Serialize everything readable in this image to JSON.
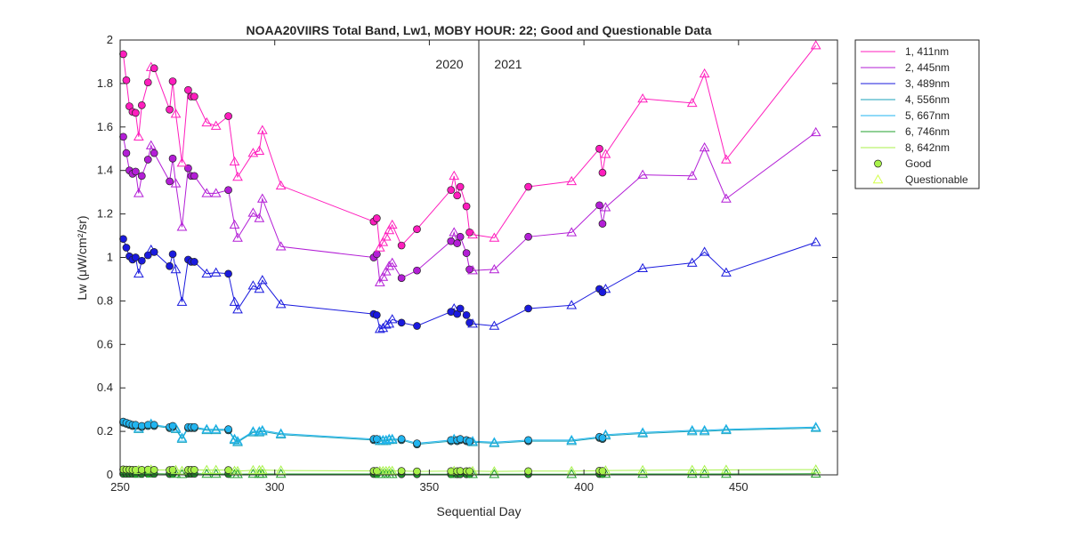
{
  "chart_data": {
    "type": "line",
    "title": "NOAA20VIIRS Total Band,  Lw1, MOBY HOUR: 22;  Good and Questionable Data",
    "xlabel": "Sequential Day",
    "ylabel": "Lw (μW/cm²/sr)",
    "xlim": [
      250,
      482
    ],
    "ylim": [
      0,
      2
    ],
    "xticks": [
      250,
      300,
      350,
      400,
      450
    ],
    "yticks": [
      0,
      0.2,
      0.4,
      0.6,
      0.8,
      1,
      1.2,
      1.4,
      1.6,
      1.8,
      2
    ],
    "grid": false,
    "legend_position": "outside-right",
    "year_divider": {
      "x": 366,
      "left_label": "2020",
      "right_label": "2021"
    },
    "x": [
      251,
      252,
      253,
      254,
      255,
      256,
      257,
      259,
      260,
      261,
      266,
      267,
      268,
      270,
      272,
      273,
      274,
      278,
      281,
      285,
      287,
      288,
      293,
      295,
      296,
      302,
      332,
      333,
      334,
      335,
      336,
      337,
      338,
      341,
      346,
      357,
      358,
      359,
      360,
      362,
      363,
      364,
      371,
      382,
      396,
      405,
      406,
      407,
      419,
      435,
      439,
      446,
      475
    ],
    "flags": [
      "G",
      "G",
      "G",
      "G",
      "G",
      "Q",
      "G",
      "G",
      "Q",
      "G",
      "G",
      "G",
      "Q",
      "Q",
      "G",
      "G",
      "G",
      "Q",
      "Q",
      "G",
      "Q",
      "Q",
      "Q",
      "Q",
      "Q",
      "Q",
      "G",
      "G",
      "Q",
      "Q",
      "Q",
      "Q",
      "Q",
      "G",
      "G",
      "G",
      "Q",
      "G",
      "G",
      "G",
      "G",
      "Q",
      "Q",
      "G",
      "Q",
      "G",
      "G",
      "Q",
      "Q",
      "Q",
      "Q",
      "Q",
      "Q"
    ],
    "series": [
      {
        "name": "1, 411nm",
        "color": "#ff1dbd",
        "values": [
          1.935,
          1.815,
          1.695,
          1.67,
          1.665,
          1.555,
          1.7,
          1.805,
          1.875,
          1.87,
          1.68,
          1.81,
          1.66,
          1.435,
          1.77,
          1.74,
          1.74,
          1.62,
          1.605,
          1.65,
          1.44,
          1.37,
          1.48,
          1.49,
          1.585,
          1.33,
          1.165,
          1.18,
          1.045,
          1.07,
          1.095,
          1.125,
          1.15,
          1.055,
          1.13,
          1.31,
          1.375,
          1.285,
          1.325,
          1.235,
          1.115,
          1.105,
          1.09,
          1.325,
          1.35,
          1.5,
          1.39,
          1.475,
          1.73,
          1.71,
          1.845,
          1.45,
          1.975
        ]
      },
      {
        "name": "2, 445nm",
        "color": "#b31ed6",
        "values": [
          1.555,
          1.48,
          1.4,
          1.385,
          1.395,
          1.295,
          1.375,
          1.45,
          1.515,
          1.48,
          1.35,
          1.455,
          1.34,
          1.14,
          1.41,
          1.375,
          1.375,
          1.295,
          1.295,
          1.31,
          1.15,
          1.09,
          1.205,
          1.18,
          1.27,
          1.05,
          1.0,
          1.015,
          0.885,
          0.91,
          0.935,
          0.96,
          0.975,
          0.905,
          0.94,
          1.075,
          1.115,
          1.065,
          1.095,
          1.02,
          0.945,
          0.94,
          0.945,
          1.095,
          1.115,
          1.24,
          1.155,
          1.23,
          1.38,
          1.375,
          1.505,
          1.27,
          1.575
        ]
      },
      {
        "name": "3, 489nm",
        "color": "#1a1ade",
        "values": [
          1.085,
          1.045,
          1.005,
          0.99,
          1.0,
          0.925,
          0.985,
          1.01,
          1.035,
          1.025,
          0.96,
          1.015,
          0.945,
          0.795,
          0.99,
          0.98,
          0.98,
          0.925,
          0.93,
          0.925,
          0.795,
          0.76,
          0.87,
          0.855,
          0.895,
          0.785,
          0.74,
          0.735,
          0.67,
          0.675,
          0.69,
          0.695,
          0.715,
          0.7,
          0.685,
          0.75,
          0.765,
          0.74,
          0.765,
          0.735,
          0.7,
          0.695,
          0.685,
          0.765,
          0.78,
          0.855,
          0.84,
          0.855,
          0.95,
          0.975,
          1.025,
          0.93,
          1.07
        ]
      },
      {
        "name": "4, 556nm",
        "color": "#18a2b8",
        "values": [
          0.24,
          0.235,
          0.23,
          0.225,
          0.225,
          0.21,
          0.22,
          0.225,
          0.23,
          0.225,
          0.215,
          0.22,
          0.21,
          0.165,
          0.215,
          0.215,
          0.215,
          0.205,
          0.205,
          0.205,
          0.16,
          0.15,
          0.195,
          0.195,
          0.2,
          0.185,
          0.16,
          0.16,
          0.155,
          0.155,
          0.155,
          0.16,
          0.16,
          0.16,
          0.14,
          0.155,
          0.16,
          0.155,
          0.16,
          0.155,
          0.15,
          0.15,
          0.145,
          0.155,
          0.155,
          0.17,
          0.165,
          0.18,
          0.19,
          0.2,
          0.2,
          0.205,
          0.215
        ]
      },
      {
        "name": "5, 667nm",
        "color": "#21b5f0",
        "values": [
          0.245,
          0.24,
          0.235,
          0.23,
          0.23,
          0.215,
          0.225,
          0.23,
          0.235,
          0.23,
          0.22,
          0.225,
          0.215,
          0.17,
          0.22,
          0.22,
          0.22,
          0.21,
          0.21,
          0.21,
          0.165,
          0.155,
          0.2,
          0.2,
          0.205,
          0.19,
          0.165,
          0.165,
          0.16,
          0.16,
          0.16,
          0.165,
          0.165,
          0.165,
          0.145,
          0.16,
          0.165,
          0.16,
          0.165,
          0.16,
          0.155,
          0.155,
          0.15,
          0.16,
          0.16,
          0.175,
          0.17,
          0.185,
          0.195,
          0.205,
          0.205,
          0.21,
          0.22
        ]
      },
      {
        "name": "6, 746nm",
        "color": "#22a12c",
        "values": [
          0.005,
          0.005,
          0.005,
          0.005,
          0.005,
          0.004,
          0.005,
          0.005,
          0.005,
          0.005,
          0.004,
          0.005,
          0.004,
          0.003,
          0.005,
          0.005,
          0.005,
          0.004,
          0.004,
          0.004,
          0.003,
          0.003,
          0.004,
          0.004,
          0.004,
          0.004,
          0.004,
          0.004,
          0.003,
          0.003,
          0.003,
          0.003,
          0.003,
          0.003,
          0.003,
          0.003,
          0.003,
          0.003,
          0.003,
          0.003,
          0.003,
          0.003,
          0.003,
          0.003,
          0.003,
          0.004,
          0.004,
          0.004,
          0.004,
          0.004,
          0.004,
          0.004,
          0.005
        ]
      },
      {
        "name": "8, 642nm",
        "color": "#a8f24a",
        "values": [
          0.025,
          0.024,
          0.024,
          0.023,
          0.023,
          0.022,
          0.023,
          0.024,
          0.024,
          0.023,
          0.022,
          0.023,
          0.022,
          0.018,
          0.023,
          0.023,
          0.023,
          0.022,
          0.022,
          0.022,
          0.018,
          0.017,
          0.021,
          0.021,
          0.022,
          0.02,
          0.018,
          0.018,
          0.017,
          0.017,
          0.017,
          0.018,
          0.018,
          0.018,
          0.016,
          0.017,
          0.018,
          0.017,
          0.018,
          0.017,
          0.017,
          0.017,
          0.016,
          0.017,
          0.017,
          0.019,
          0.018,
          0.02,
          0.021,
          0.022,
          0.022,
          0.023,
          0.024
        ]
      }
    ],
    "legend_markers": [
      {
        "label": "Good",
        "marker": "circle",
        "color": "#a8f24a"
      },
      {
        "label": "Questionable",
        "marker": "triangle",
        "color": "#d4ff4a"
      }
    ]
  }
}
